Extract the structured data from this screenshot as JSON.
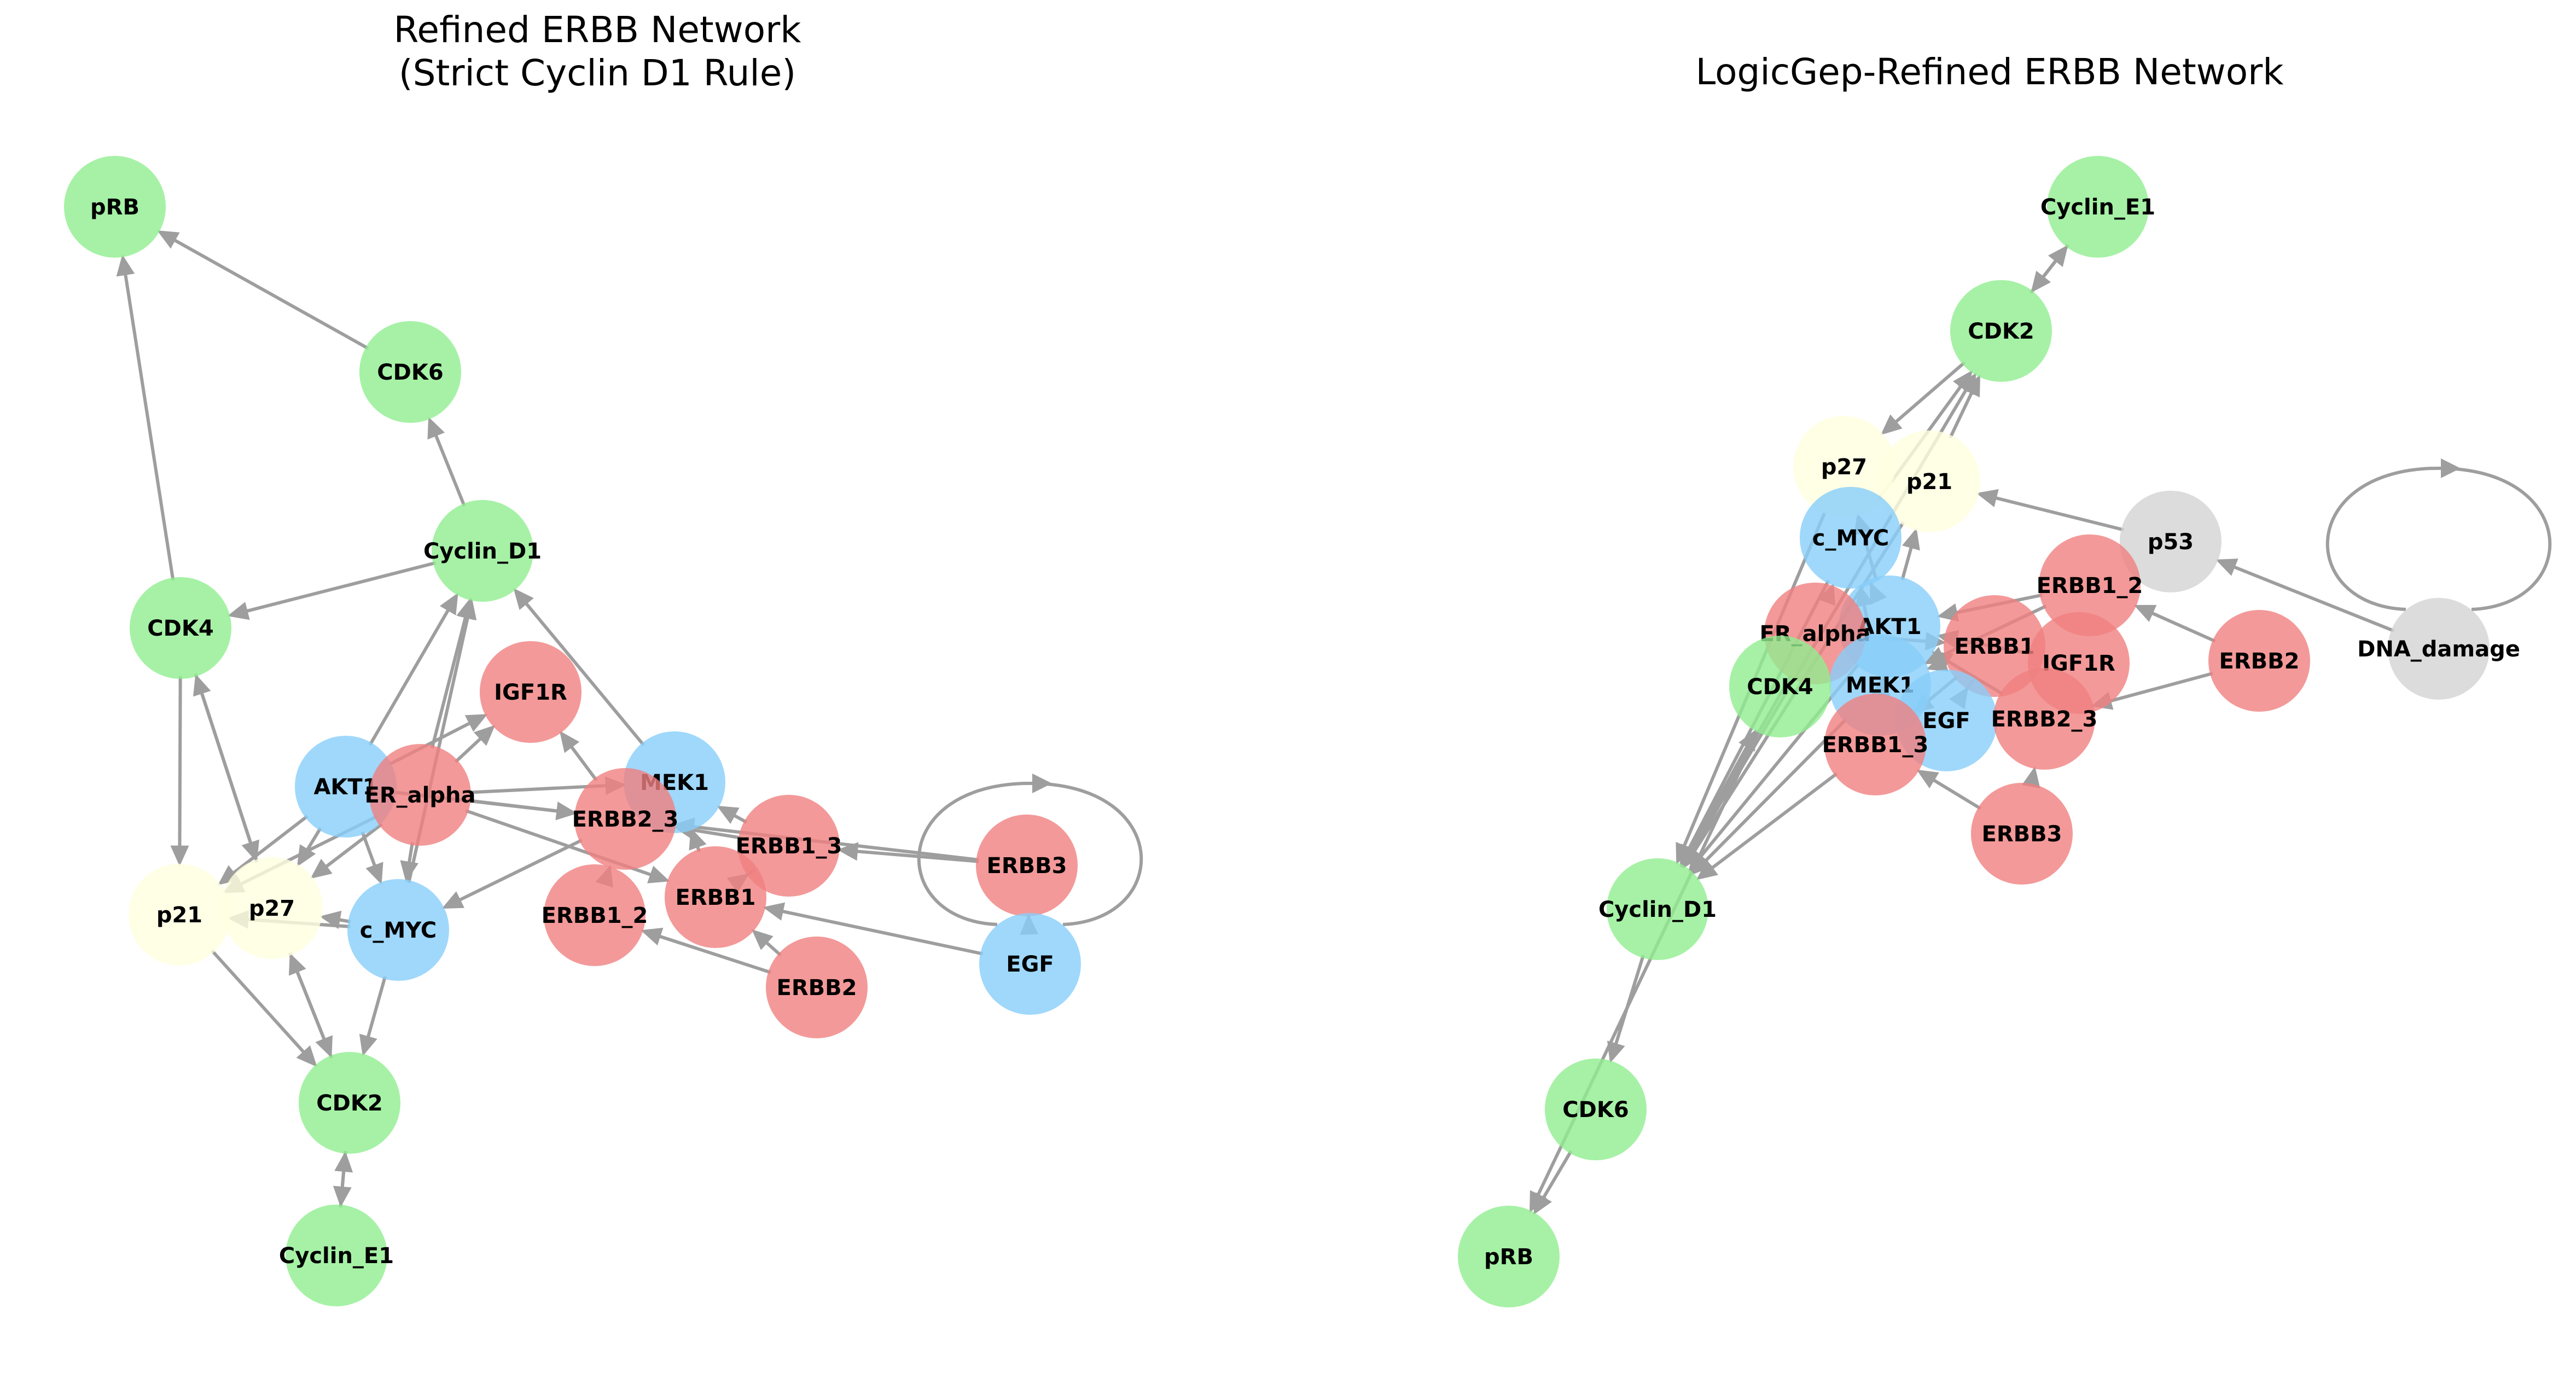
{
  "colors": {
    "green": "#90ee90",
    "blue": "#87cefa",
    "red": "#f08080",
    "yellow": "#ffffe0",
    "gray": "#d3d3d3",
    "edge": "#9e9e9e"
  },
  "panels": [
    {
      "id": "left",
      "title_lines": [
        "Refined ERBB Network",
        "(Strict Cyclin D1 Rule)"
      ],
      "nodes": [
        {
          "id": "pRB",
          "label": "pRB",
          "color": "green"
        },
        {
          "id": "CDK6",
          "label": "CDK6",
          "color": "green"
        },
        {
          "id": "Cyclin_D1",
          "label": "Cyclin_D1",
          "color": "green"
        },
        {
          "id": "CDK4",
          "label": "CDK4",
          "color": "green"
        },
        {
          "id": "IGF1R",
          "label": "IGF1R",
          "color": "red"
        },
        {
          "id": "AKT1",
          "label": "AKT1",
          "color": "blue"
        },
        {
          "id": "MEK1",
          "label": "MEK1",
          "color": "blue"
        },
        {
          "id": "ER_alpha",
          "label": "ER_alpha",
          "color": "red"
        },
        {
          "id": "ERBB2_3",
          "label": "ERBB2_3",
          "color": "red"
        },
        {
          "id": "ERBB1_3",
          "label": "ERBB1_3",
          "color": "red"
        },
        {
          "id": "ERBB3",
          "label": "ERBB3",
          "color": "red"
        },
        {
          "id": "ERBB1",
          "label": "ERBB1",
          "color": "red"
        },
        {
          "id": "ERBB1_2",
          "label": "ERBB1_2",
          "color": "red"
        },
        {
          "id": "p21",
          "label": "p21",
          "color": "yellow"
        },
        {
          "id": "p27",
          "label": "p27",
          "color": "yellow"
        },
        {
          "id": "c_MYC",
          "label": "c_MYC",
          "color": "blue"
        },
        {
          "id": "EGF",
          "label": "EGF",
          "color": "blue"
        },
        {
          "id": "ERBB2",
          "label": "ERBB2",
          "color": "red"
        },
        {
          "id": "CDK2",
          "label": "CDK2",
          "color": "green"
        },
        {
          "id": "Cyclin_E1",
          "label": "Cyclin_E1",
          "color": "green"
        }
      ],
      "edges": [
        [
          "CDK6",
          "pRB"
        ],
        [
          "CDK4",
          "pRB"
        ],
        [
          "Cyclin_D1",
          "CDK6"
        ],
        [
          "Cyclin_D1",
          "CDK4"
        ],
        [
          "AKT1",
          "Cyclin_D1"
        ],
        [
          "ER_alpha",
          "Cyclin_D1"
        ],
        [
          "c_MYC",
          "Cyclin_D1"
        ],
        [
          "MEK1",
          "Cyclin_D1"
        ],
        [
          "ER_alpha",
          "IGF1R"
        ],
        [
          "AKT1",
          "IGF1R"
        ],
        [
          "ERBB2_3",
          "IGF1R"
        ],
        [
          "ER_alpha",
          "MEK1"
        ],
        [
          "ERBB1",
          "MEK1"
        ],
        [
          "ERBB1_3",
          "MEK1"
        ],
        [
          "ER_alpha",
          "ERBB2_3"
        ],
        [
          "ERBB1_2",
          "ERBB2_3"
        ],
        [
          "AKT1",
          "ERBB2_3"
        ],
        [
          "ERBB3",
          "ERBB2_3"
        ],
        [
          "ERBB1_3",
          "ERBB2_3"
        ],
        [
          "ER_alpha",
          "ERBB1"
        ],
        [
          "ERBB2",
          "ERBB1"
        ],
        [
          "EGF",
          "ERBB1"
        ],
        [
          "ERBB1",
          "ERBB1_3"
        ],
        [
          "EGF",
          "ERBB3"
        ],
        [
          "EGF",
          "EGF"
        ],
        [
          "ERBB3",
          "ERBB1_3"
        ],
        [
          "ERBB2",
          "ERBB1_2"
        ],
        [
          "CDK4",
          "p21"
        ],
        [
          "CDK4",
          "p27"
        ],
        [
          "AKT1",
          "p21"
        ],
        [
          "AKT1",
          "p27"
        ],
        [
          "ER_alpha",
          "p21"
        ],
        [
          "ER_alpha",
          "p27"
        ],
        [
          "c_MYC",
          "p21"
        ],
        [
          "c_MYC",
          "p27"
        ],
        [
          "AKT1",
          "c_MYC"
        ],
        [
          "ERBB2_3",
          "c_MYC"
        ],
        [
          "ER_alpha",
          "c_MYC"
        ],
        [
          "p21",
          "CDK2"
        ],
        [
          "p27",
          "CDK2"
        ],
        [
          "c_MYC",
          "CDK2"
        ],
        [
          "CDK2",
          "p27"
        ],
        [
          "Cyclin_E1",
          "CDK2"
        ],
        [
          "CDK2",
          "Cyclin_E1"
        ],
        [
          "p27",
          "CDK4"
        ]
      ]
    },
    {
      "id": "right",
      "title_lines": [
        "LogicGep-Refined ERBB Network"
      ],
      "nodes": [
        {
          "id": "Cyclin_E1",
          "label": "Cyclin_E1",
          "color": "green"
        },
        {
          "id": "CDK2",
          "label": "CDK2",
          "color": "green"
        },
        {
          "id": "p27",
          "label": "p27",
          "color": "yellow"
        },
        {
          "id": "p21",
          "label": "p21",
          "color": "yellow"
        },
        {
          "id": "c_MYC",
          "label": "c_MYC",
          "color": "blue"
        },
        {
          "id": "p53",
          "label": "p53",
          "color": "gray"
        },
        {
          "id": "ERBB1_2",
          "label": "ERBB1_2",
          "color": "red"
        },
        {
          "id": "DNA_damage",
          "label": "DNA_damage",
          "color": "gray"
        },
        {
          "id": "AKT1",
          "label": "AKT1",
          "color": "blue"
        },
        {
          "id": "ER_alpha",
          "label": "ER_alpha",
          "color": "red"
        },
        {
          "id": "ERBB1",
          "label": "ERBB1",
          "color": "red"
        },
        {
          "id": "IGF1R",
          "label": "IGF1R",
          "color": "red"
        },
        {
          "id": "ERBB2",
          "label": "ERBB2",
          "color": "red"
        },
        {
          "id": "MEK1",
          "label": "MEK1",
          "color": "blue"
        },
        {
          "id": "CDK4",
          "label": "CDK4",
          "color": "green"
        },
        {
          "id": "EGF",
          "label": "EGF",
          "color": "blue"
        },
        {
          "id": "ERBB2_3",
          "label": "ERBB2_3",
          "color": "red"
        },
        {
          "id": "ERBB1_3",
          "label": "ERBB1_3",
          "color": "red"
        },
        {
          "id": "ERBB3",
          "label": "ERBB3",
          "color": "red"
        },
        {
          "id": "Cyclin_D1",
          "label": "Cyclin_D1",
          "color": "green"
        },
        {
          "id": "CDK6",
          "label": "CDK6",
          "color": "green"
        },
        {
          "id": "pRB",
          "label": "pRB",
          "color": "green"
        }
      ],
      "edges": [
        [
          "CDK2",
          "Cyclin_E1"
        ],
        [
          "Cyclin_E1",
          "CDK2"
        ],
        [
          "CDK2",
          "p27"
        ],
        [
          "p21",
          "CDK2"
        ],
        [
          "Cyclin_D1",
          "CDK2"
        ],
        [
          "c_MYC",
          "CDK2"
        ],
        [
          "DNA_damage",
          "p53"
        ],
        [
          "DNA_damage",
          "DNA_damage"
        ],
        [
          "p53",
          "p21"
        ],
        [
          "AKT1",
          "p21"
        ],
        [
          "AKT1",
          "p27"
        ],
        [
          "ER_alpha",
          "c_MYC"
        ],
        [
          "MEK1",
          "c_MYC"
        ],
        [
          "AKT1",
          "c_MYC"
        ],
        [
          "ERBB1_2",
          "AKT1"
        ],
        [
          "ERBB1",
          "AKT1"
        ],
        [
          "IGF1R",
          "AKT1"
        ],
        [
          "ERBB2_3",
          "AKT1"
        ],
        [
          "ERBB1_3",
          "AKT1"
        ],
        [
          "ERBB1_2",
          "MEK1"
        ],
        [
          "ERBB1",
          "MEK1"
        ],
        [
          "ERBB2",
          "ERBB1_2"
        ],
        [
          "ERBB2",
          "ERBB2_3"
        ],
        [
          "EGF",
          "ERBB1"
        ],
        [
          "ERBB3",
          "ERBB2_3"
        ],
        [
          "ERBB3",
          "ERBB1_3"
        ],
        [
          "ERBB1",
          "ERBB1_3"
        ],
        [
          "ER_alpha",
          "ERBB1"
        ],
        [
          "Cyclin_D1",
          "CDK4"
        ],
        [
          "AKT1",
          "Cyclin_D1"
        ],
        [
          "MEK1",
          "Cyclin_D1"
        ],
        [
          "ER_alpha",
          "Cyclin_D1"
        ],
        [
          "c_MYC",
          "Cyclin_D1"
        ],
        [
          "ERBB1_3",
          "Cyclin_D1"
        ],
        [
          "p27",
          "Cyclin_D1"
        ],
        [
          "p21",
          "Cyclin_D1"
        ],
        [
          "Cyclin_D1",
          "CDK6"
        ],
        [
          "CDK6",
          "pRB"
        ],
        [
          "CDK4",
          "pRB"
        ]
      ]
    }
  ]
}
